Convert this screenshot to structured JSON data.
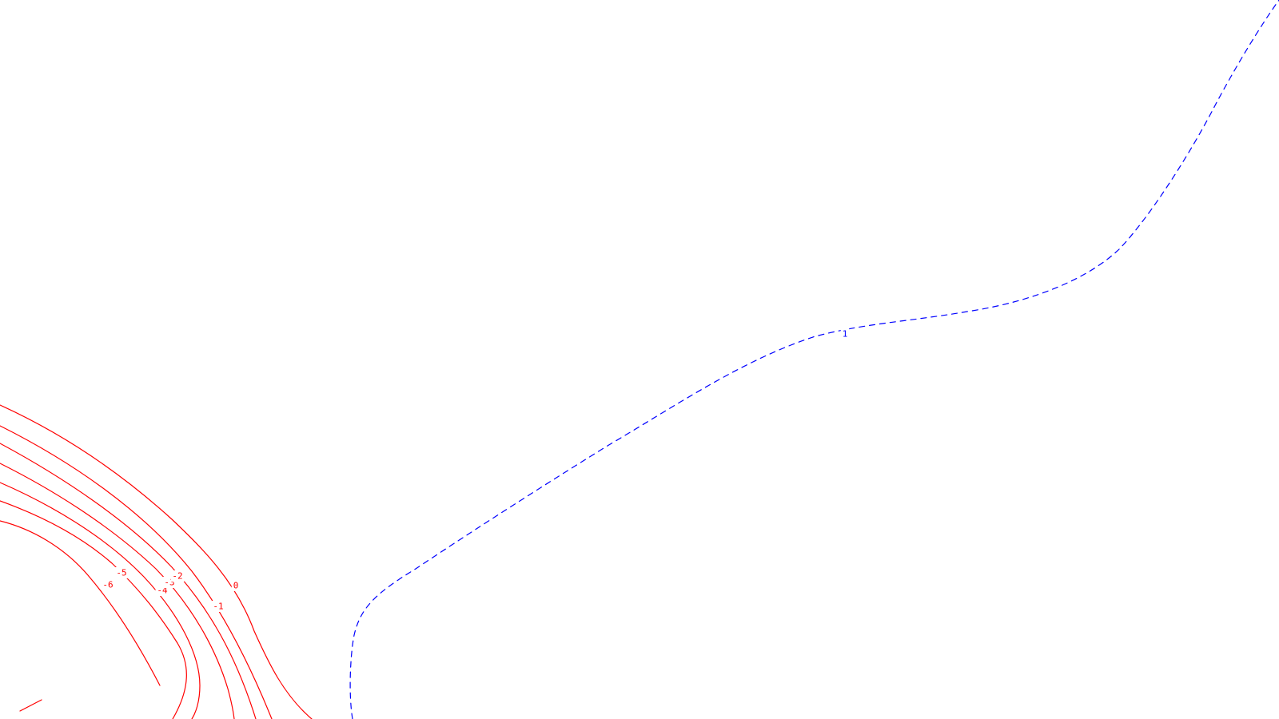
{
  "chart_data": {
    "type": "contour",
    "title": "",
    "xlabel": "",
    "ylabel": "",
    "colors": {
      "negative": "#ff0000",
      "positive": "#0000ff",
      "background": "#ffffff"
    },
    "contour_levels": [
      {
        "level": -7,
        "label": "",
        "line_style": "solid"
      },
      {
        "level": -6,
        "label": "-6",
        "line_style": "solid"
      },
      {
        "level": -5,
        "label": "-5",
        "line_style": "solid"
      },
      {
        "level": -4,
        "label": "-4",
        "line_style": "solid"
      },
      {
        "level": -3,
        "label": "-3",
        "line_style": "solid"
      },
      {
        "level": -2,
        "label": "-2",
        "line_style": "solid"
      },
      {
        "level": -1,
        "label": "-1",
        "line_style": "solid"
      },
      {
        "level": 0,
        "label": "0",
        "line_style": "solid"
      },
      {
        "level": 1,
        "label": "1",
        "line_style": "dashed"
      }
    ]
  }
}
